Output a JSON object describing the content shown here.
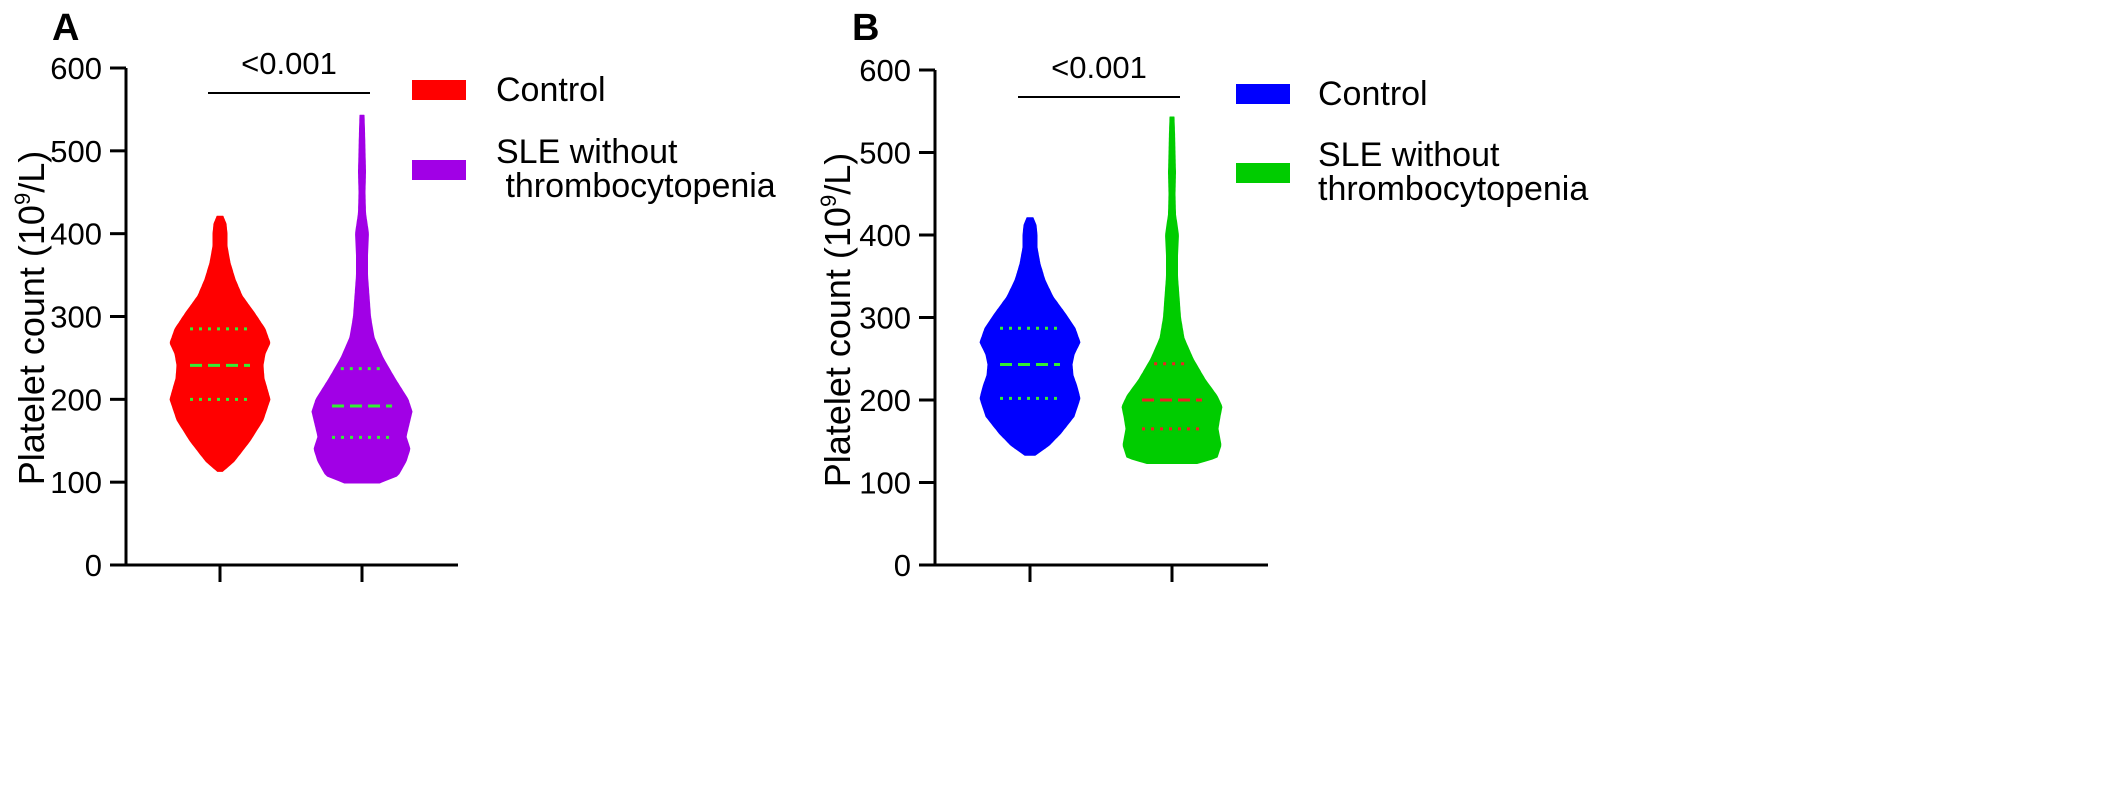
{
  "chart_data": [
    {
      "type": "violin",
      "panel_label": "A",
      "ylabel_prefix": "Platelet count (10",
      "ylabel_sup": "9",
      "ylabel_suffix": "/L)",
      "ylim": [
        0,
        600
      ],
      "yticks": [
        "0",
        "100",
        "200",
        "300",
        "400",
        "500",
        "600"
      ],
      "grid": false,
      "legend_position": "right",
      "significance": "<0.001",
      "series": [
        {
          "name": "Control",
          "legend_lines": [
            "Control"
          ],
          "color": "#ff0000",
          "median_color": "#33ee33",
          "quartile_color": "#33ee33",
          "min": 113,
          "max": 421,
          "q1": 200,
          "median": 241,
          "q3": 285,
          "profile": [
            [
              113,
              0.05
            ],
            [
              125,
              0.28
            ],
            [
              150,
              0.6
            ],
            [
              175,
              0.86
            ],
            [
              200,
              1.0
            ],
            [
              215,
              0.93
            ],
            [
              225,
              0.88
            ],
            [
              241,
              0.86
            ],
            [
              255,
              0.9
            ],
            [
              268,
              1.0
            ],
            [
              285,
              0.9
            ],
            [
              305,
              0.68
            ],
            [
              325,
              0.44
            ],
            [
              345,
              0.3
            ],
            [
              365,
              0.2
            ],
            [
              385,
              0.14
            ],
            [
              400,
              0.14
            ],
            [
              412,
              0.12
            ],
            [
              421,
              0.06
            ]
          ]
        },
        {
          "name": "SLE without thrombocytopenia",
          "legend_lines": [
            "SLE without",
            " thrombocytopenia"
          ],
          "color": "#a100e6",
          "median_color": "#33ee33",
          "quartile_color": "#33ee33",
          "min": 99,
          "max": 543,
          "q1": 154,
          "median": 192,
          "q3": 237,
          "profile": [
            [
              99,
              0.35
            ],
            [
              108,
              0.72
            ],
            [
              125,
              0.88
            ],
            [
              140,
              0.96
            ],
            [
              155,
              0.88
            ],
            [
              170,
              0.94
            ],
            [
              185,
              1.0
            ],
            [
              200,
              0.92
            ],
            [
              225,
              0.66
            ],
            [
              250,
              0.42
            ],
            [
              275,
              0.24
            ],
            [
              300,
              0.17
            ],
            [
              325,
              0.14
            ],
            [
              350,
              0.11
            ],
            [
              375,
              0.11
            ],
            [
              400,
              0.13
            ],
            [
              425,
              0.07
            ],
            [
              450,
              0.06
            ],
            [
              475,
              0.07
            ],
            [
              500,
              0.06
            ],
            [
              525,
              0.05
            ],
            [
              543,
              0.04
            ]
          ]
        }
      ]
    },
    {
      "type": "violin",
      "panel_label": "B",
      "ylabel_prefix": "Platelet count (10",
      "ylabel_sup": "9",
      "ylabel_suffix": "/L)",
      "ylim": [
        0,
        600
      ],
      "yticks": [
        "0",
        "100",
        "200",
        "300",
        "400",
        "500",
        "600"
      ],
      "grid": false,
      "legend_position": "right",
      "significance": "<0.001",
      "series": [
        {
          "name": "Control",
          "legend_lines": [
            "Control"
          ],
          "color": "#0000ff",
          "median_color": "#33ee33",
          "quartile_color": "#33ee33",
          "min": 133,
          "max": 421,
          "q1": 202,
          "median": 243,
          "q3": 287,
          "profile": [
            [
              133,
              0.1
            ],
            [
              145,
              0.38
            ],
            [
              160,
              0.62
            ],
            [
              180,
              0.88
            ],
            [
              202,
              1.0
            ],
            [
              218,
              0.93
            ],
            [
              230,
              0.86
            ],
            [
              243,
              0.84
            ],
            [
              255,
              0.88
            ],
            [
              270,
              1.0
            ],
            [
              287,
              0.9
            ],
            [
              305,
              0.7
            ],
            [
              325,
              0.46
            ],
            [
              345,
              0.3
            ],
            [
              365,
              0.2
            ],
            [
              385,
              0.14
            ],
            [
              400,
              0.14
            ],
            [
              412,
              0.12
            ],
            [
              421,
              0.06
            ]
          ]
        },
        {
          "name": "SLE without thrombocytopenia",
          "legend_lines": [
            "SLE without",
            "thrombocytopenia"
          ],
          "color": "#00cc00",
          "median_color": "#ee2222",
          "quartile_color": "#ee2222",
          "min": 123,
          "max": 543,
          "q1": 165,
          "median": 200,
          "q3": 244,
          "profile": [
            [
              123,
              0.5
            ],
            [
              130,
              0.9
            ],
            [
              145,
              0.98
            ],
            [
              165,
              0.92
            ],
            [
              180,
              0.96
            ],
            [
              192,
              1.0
            ],
            [
              205,
              0.9
            ],
            [
              225,
              0.66
            ],
            [
              250,
              0.42
            ],
            [
              275,
              0.24
            ],
            [
              300,
              0.17
            ],
            [
              325,
              0.14
            ],
            [
              350,
              0.11
            ],
            [
              375,
              0.11
            ],
            [
              400,
              0.13
            ],
            [
              425,
              0.07
            ],
            [
              450,
              0.06
            ],
            [
              475,
              0.07
            ],
            [
              500,
              0.06
            ],
            [
              525,
              0.05
            ],
            [
              543,
              0.04
            ]
          ]
        }
      ]
    }
  ]
}
